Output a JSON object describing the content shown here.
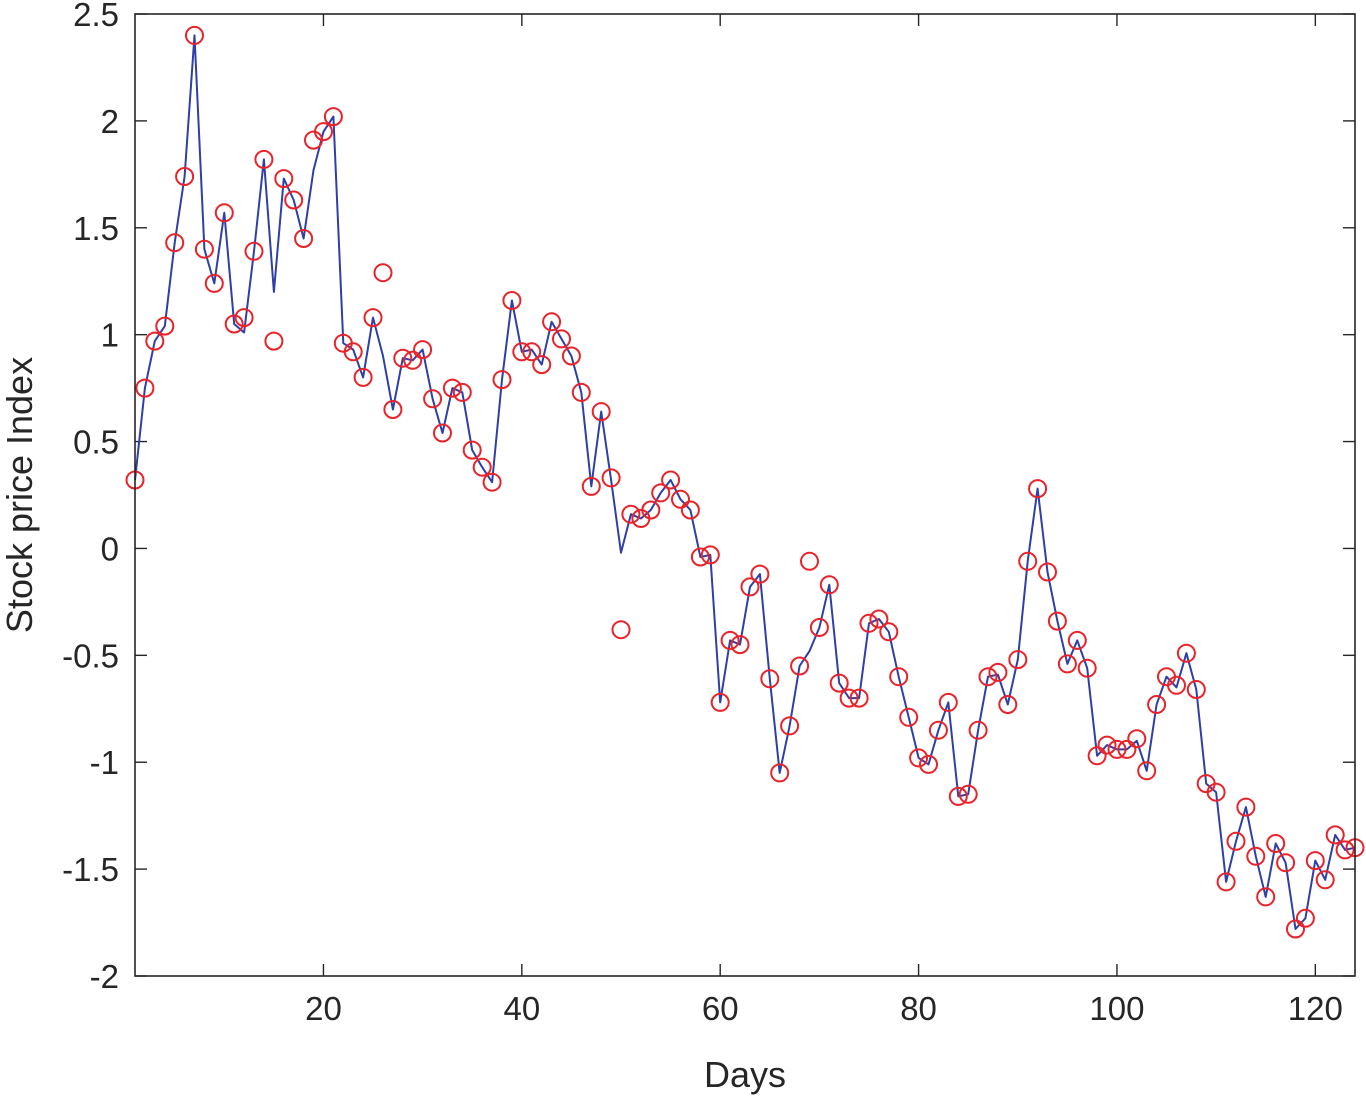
{
  "chart_data": {
    "type": "line",
    "title": "",
    "xlabel": "Days",
    "ylabel": "Stock price Index",
    "xlim": [
      1,
      124
    ],
    "ylim": [
      -2,
      2.5
    ],
    "xticks": [
      20,
      40,
      60,
      80,
      100,
      120
    ],
    "yticks": [
      -2,
      -1.5,
      -1,
      -0.5,
      0,
      0.5,
      1,
      1.5,
      2,
      2.5
    ],
    "xtick_labels": [
      "20",
      "40",
      "60",
      "80",
      "100",
      "120"
    ],
    "ytick_labels": [
      "-2",
      "-1.5",
      "-1",
      "-0.5",
      "0",
      "0.5",
      "1",
      "1.5",
      "2",
      "2.5"
    ],
    "grid": false,
    "series": [
      {
        "style": "line",
        "color": "#2e3fa8",
        "x": [
          1,
          2,
          3,
          4,
          5,
          6,
          7,
          8,
          9,
          10,
          11,
          12,
          13,
          14,
          15,
          16,
          17,
          18,
          19,
          20,
          21,
          22,
          23,
          24,
          25,
          26,
          27,
          28,
          29,
          30,
          31,
          32,
          33,
          34,
          35,
          36,
          37,
          38,
          39,
          40,
          41,
          42,
          43,
          44,
          45,
          46,
          47,
          48,
          49,
          50,
          51,
          52,
          53,
          54,
          55,
          56,
          57,
          58,
          59,
          60,
          61,
          62,
          63,
          64,
          65,
          66,
          67,
          68,
          69,
          70,
          71,
          72,
          73,
          74,
          75,
          76,
          77,
          78,
          79,
          80,
          81,
          82,
          83,
          84,
          85,
          86,
          87,
          88,
          89,
          90,
          91,
          92,
          93,
          94,
          95,
          96,
          97,
          98,
          99,
          100,
          101,
          102,
          103,
          104,
          105,
          106,
          107,
          108,
          109,
          110,
          111,
          112,
          113,
          114,
          115,
          116,
          117,
          118,
          119,
          120,
          121,
          122,
          123,
          124
        ],
        "y": [
          0.32,
          0.75,
          0.97,
          1.04,
          1.43,
          1.74,
          2.4,
          1.4,
          1.24,
          1.57,
          1.05,
          1.01,
          1.39,
          1.82,
          1.2,
          1.73,
          1.63,
          1.45,
          1.77,
          1.95,
          2.02,
          0.96,
          0.93,
          0.8,
          1.08,
          0.9,
          0.65,
          0.89,
          0.88,
          0.93,
          0.7,
          0.54,
          0.75,
          0.73,
          0.46,
          0.38,
          0.31,
          0.79,
          1.16,
          0.92,
          0.93,
          0.86,
          1.06,
          0.98,
          0.9,
          0.73,
          0.29,
          0.64,
          0.32,
          -0.02,
          0.16,
          0.14,
          0.18,
          0.26,
          0.32,
          0.23,
          0.18,
          -0.04,
          -0.03,
          -0.72,
          -0.43,
          -0.45,
          -0.18,
          -0.12,
          -0.61,
          -1.05,
          -0.83,
          -0.55,
          -0.48,
          -0.37,
          -0.17,
          -0.63,
          -0.7,
          -0.7,
          -0.35,
          -0.33,
          -0.39,
          -0.6,
          -0.79,
          -0.98,
          -1.01,
          -0.85,
          -0.72,
          -1.16,
          -1.15,
          -0.85,
          -0.6,
          -0.59,
          -0.73,
          -0.52,
          -0.06,
          0.28,
          -0.11,
          -0.34,
          -0.54,
          -0.43,
          -0.56,
          -0.97,
          -0.92,
          -0.94,
          -0.94,
          -0.9,
          -1.04,
          -0.73,
          -0.6,
          -0.65,
          -0.49,
          -0.66,
          -1.1,
          -1.14,
          -1.56,
          -1.37,
          -1.21,
          -1.44,
          -1.63,
          -1.38,
          -1.47,
          -1.78,
          -1.73,
          -1.46,
          -1.55,
          -1.34,
          -1.41,
          -1.4
        ]
      },
      {
        "style": "markers",
        "marker": "circle-open",
        "color": "#e8232a",
        "x": [
          1,
          2,
          3,
          4,
          5,
          6,
          7,
          8,
          9,
          10,
          11,
          12,
          13,
          14,
          15,
          16,
          17,
          18,
          19,
          20,
          21,
          22,
          23,
          24,
          25,
          26,
          27,
          28,
          29,
          30,
          31,
          32,
          33,
          34,
          35,
          36,
          37,
          38,
          39,
          40,
          41,
          42,
          43,
          44,
          45,
          46,
          47,
          48,
          49,
          50,
          51,
          52,
          53,
          54,
          55,
          56,
          57,
          58,
          59,
          60,
          61,
          62,
          63,
          64,
          65,
          66,
          67,
          68,
          69,
          70,
          71,
          72,
          73,
          74,
          75,
          76,
          77,
          78,
          79,
          80,
          81,
          82,
          83,
          84,
          85,
          86,
          87,
          88,
          89,
          90,
          91,
          92,
          93,
          94,
          95,
          96,
          97,
          98,
          99,
          100,
          101,
          102,
          103,
          104,
          105,
          106,
          107,
          108,
          109,
          110,
          111,
          112,
          113,
          114,
          115,
          116,
          117,
          118,
          119,
          120,
          121,
          122,
          123,
          124
        ],
        "y": [
          0.32,
          0.75,
          0.97,
          1.04,
          1.43,
          1.74,
          2.4,
          1.4,
          1.24,
          1.57,
          1.05,
          1.08,
          1.39,
          1.82,
          0.97,
          1.73,
          1.63,
          1.45,
          1.91,
          1.95,
          2.02,
          0.96,
          0.92,
          0.8,
          1.08,
          1.29,
          0.65,
          0.89,
          0.88,
          0.93,
          0.7,
          0.54,
          0.75,
          0.73,
          0.46,
          0.38,
          0.31,
          0.79,
          1.16,
          0.92,
          0.92,
          0.86,
          1.06,
          0.98,
          0.9,
          0.73,
          0.29,
          0.64,
          0.33,
          -0.38,
          0.16,
          0.14,
          0.18,
          0.26,
          0.32,
          0.23,
          0.18,
          -0.04,
          -0.03,
          -0.72,
          -0.43,
          -0.45,
          -0.18,
          -0.12,
          -0.61,
          -1.05,
          -0.83,
          -0.55,
          -0.06,
          -0.37,
          -0.17,
          -0.63,
          -0.7,
          -0.7,
          -0.35,
          -0.33,
          -0.39,
          -0.6,
          -0.79,
          -0.98,
          -1.01,
          -0.85,
          -0.72,
          -1.16,
          -1.15,
          -0.85,
          -0.6,
          -0.58,
          -0.73,
          -0.52,
          -0.06,
          0.28,
          -0.11,
          -0.34,
          -0.54,
          -0.43,
          -0.56,
          -0.97,
          -0.92,
          -0.94,
          -0.94,
          -0.89,
          -1.04,
          -0.73,
          -0.6,
          -0.64,
          -0.49,
          -0.66,
          -1.1,
          -1.14,
          -1.56,
          -1.37,
          -1.21,
          -1.44,
          -1.63,
          -1.38,
          -1.47,
          -1.78,
          -1.73,
          -1.46,
          -1.55,
          -1.34,
          -1.41,
          -1.4
        ]
      }
    ]
  }
}
